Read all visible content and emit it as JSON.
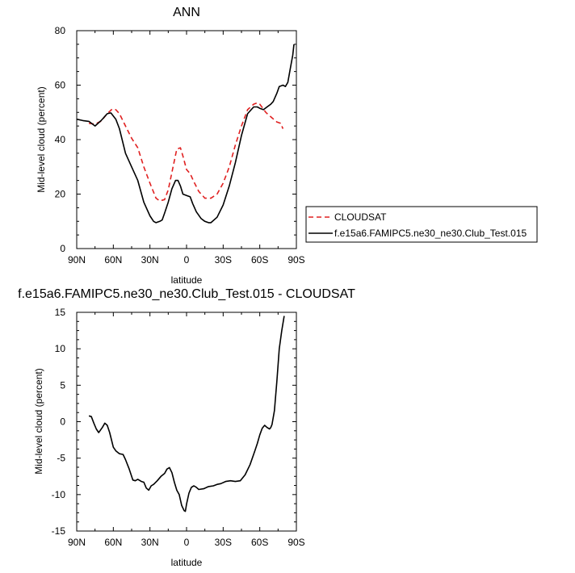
{
  "chart_data": [
    {
      "type": "line",
      "title": "ANN",
      "xlabel": "latitude",
      "ylabel": "Mid-level cloud (percent)",
      "xlim": [
        90,
        -90
      ],
      "ylim": [
        0,
        80
      ],
      "x_ticks": [
        90,
        60,
        30,
        0,
        -30,
        -60,
        -90
      ],
      "x_tick_labels": [
        "90N",
        "60N",
        "30N",
        "0",
        "30S",
        "60S",
        "90S"
      ],
      "y_ticks": [
        0,
        20,
        40,
        60,
        80
      ],
      "y_tick_labels": [
        "0",
        "20",
        "40",
        "60",
        "80"
      ],
      "grid": false,
      "legend_position": "right",
      "series": [
        {
          "name": "CLOUDSAT",
          "color": "#e02020",
          "dash": "dashed",
          "x": [
            80,
            75,
            70,
            65,
            61,
            58,
            55,
            50,
            45,
            40,
            35,
            30,
            25,
            22,
            18,
            15,
            12,
            8,
            5,
            3,
            0,
            -3,
            -6,
            -10,
            -15,
            -20,
            -25,
            -30,
            -35,
            -40,
            -45,
            -50,
            -55,
            -58,
            -60,
            -65,
            -70,
            -74,
            -77,
            -79
          ],
          "y": [
            46,
            45.7,
            46.8,
            49.5,
            51.2,
            51,
            49.5,
            45,
            40.5,
            37,
            30,
            24,
            18.5,
            17.5,
            18,
            21.5,
            28,
            36.5,
            37,
            34,
            29,
            27.5,
            24.5,
            21,
            18.5,
            18.5,
            20,
            24,
            30,
            38,
            45,
            51,
            53,
            53.5,
            53,
            50,
            48,
            46.5,
            46,
            44
          ]
        },
        {
          "name": "f.e15a6.FAMIPC5.ne30_ne30.Club_Test.015",
          "color": "#000000",
          "dash": "solid",
          "x": [
            90,
            85,
            80,
            75,
            70,
            65,
            62,
            58,
            55,
            50,
            45,
            40,
            35,
            30,
            27,
            25,
            22,
            20,
            18,
            15,
            12,
            9,
            7,
            5,
            3,
            0,
            -3,
            -5,
            -8,
            -12,
            -15,
            -18,
            -20,
            -25,
            -30,
            -35,
            -40,
            -45,
            -50,
            -55,
            -58,
            -60,
            -63,
            -66,
            -69,
            -71,
            -74,
            -76,
            -79,
            -81,
            -83,
            -85,
            -87,
            -88
          ],
          "y": [
            47.5,
            47,
            46.7,
            45,
            47,
            49.5,
            49.8,
            47.5,
            44,
            35,
            30,
            25,
            17,
            12,
            10,
            9.5,
            10,
            10.5,
            13,
            17,
            22,
            25,
            25,
            23,
            20,
            19.5,
            19,
            16.5,
            13.5,
            11,
            10,
            9.5,
            9.5,
            11.5,
            16,
            23,
            31.5,
            41.5,
            49.5,
            52,
            52,
            51.5,
            51,
            52,
            53,
            54,
            57,
            59.5,
            60,
            59.5,
            61,
            66,
            71,
            75
          ]
        }
      ]
    },
    {
      "type": "line",
      "title": "f.e15a6.FAMIPC5.ne30_ne30.Club_Test.015 - CLOUDSAT",
      "xlabel": "latitude",
      "ylabel": "Mid-level cloud (percent)",
      "xlim": [
        90,
        -90
      ],
      "ylim": [
        -15,
        15
      ],
      "x_ticks": [
        90,
        60,
        30,
        0,
        -30,
        -60,
        -90
      ],
      "x_tick_labels": [
        "90N",
        "60N",
        "30N",
        "0",
        "30S",
        "60S",
        "90S"
      ],
      "y_ticks": [
        -15,
        -10,
        -5,
        0,
        5,
        10,
        15
      ],
      "y_tick_labels": [
        "-15",
        "-10",
        "-5",
        "0",
        "5",
        "10",
        "15"
      ],
      "grid": false,
      "series": [
        {
          "color": "#000000",
          "dash": "solid",
          "x": [
            80,
            78,
            76,
            74,
            72,
            69,
            67,
            65,
            63,
            60,
            58,
            55,
            52,
            50,
            47,
            44,
            42,
            40,
            37,
            35,
            33,
            31,
            29,
            27,
            24,
            21,
            18,
            16,
            14,
            12,
            10,
            8,
            6,
            4,
            2,
            1,
            0,
            -2,
            -4,
            -6,
            -8,
            -10,
            -14,
            -18,
            -22,
            -25,
            -28,
            -32,
            -36,
            -40,
            -44,
            -48,
            -52,
            -56,
            -58,
            -60,
            -62,
            -64,
            -66,
            -68,
            -69,
            -70,
            -72,
            -74,
            -76,
            -78,
            -80
          ],
          "y": [
            0.8,
            0.7,
            -0.2,
            -1,
            -1.5,
            -0.8,
            -0.2,
            -0.5,
            -1.5,
            -3.5,
            -4,
            -4.4,
            -4.5,
            -5.2,
            -6.5,
            -8,
            -8.1,
            -7.9,
            -8.2,
            -8.3,
            -9.1,
            -9.4,
            -8.8,
            -8.6,
            -8.1,
            -7.5,
            -7.1,
            -6.5,
            -6.3,
            -7,
            -8.3,
            -9.4,
            -10,
            -11.5,
            -12.2,
            -12.3,
            -11.3,
            -9.8,
            -9,
            -8.8,
            -9,
            -9.3,
            -9.2,
            -8.9,
            -8.8,
            -8.6,
            -8.5,
            -8.2,
            -8.1,
            -8.2,
            -8.1,
            -7.3,
            -5.9,
            -4,
            -3,
            -1.8,
            -0.9,
            -0.5,
            -0.8,
            -1,
            -0.8,
            -0.4,
            1.5,
            5.5,
            10,
            12.5,
            14.5
          ]
        }
      ]
    }
  ]
}
